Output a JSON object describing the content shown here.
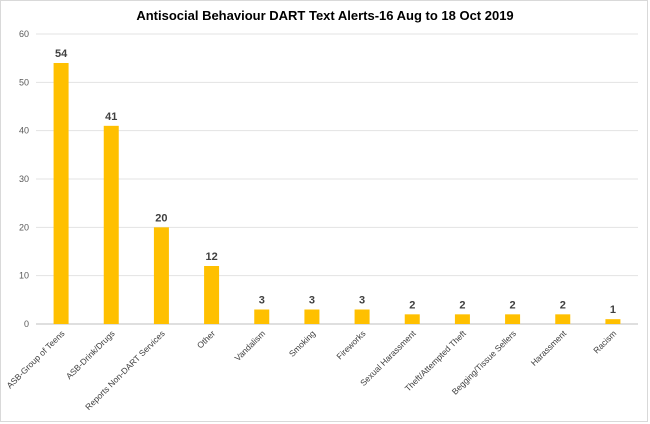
{
  "chart_data": {
    "type": "bar",
    "title": "Antisocial Behaviour DART Text Alerts-16 Aug to 18 Oct 2019",
    "xlabel": "",
    "ylabel": "",
    "ylim": [
      0,
      60
    ],
    "yticks": [
      0,
      10,
      20,
      30,
      40,
      50,
      60
    ],
    "grid": true,
    "legend": "none",
    "bar_color": "#FFC000",
    "categories": [
      "ASB-Group of Teens",
      "ASB-Drink/Drugs",
      "Reports Non-DART Services",
      "Other",
      "Vandalism",
      "Smoking",
      "Fireworks",
      "Sexual Harassment",
      "Theft/Attempted Theft",
      "Begging/Tissue Sellers",
      "Harassment",
      "Racism"
    ],
    "values": [
      54,
      41,
      20,
      12,
      3,
      3,
      3,
      2,
      2,
      2,
      2,
      1
    ]
  }
}
